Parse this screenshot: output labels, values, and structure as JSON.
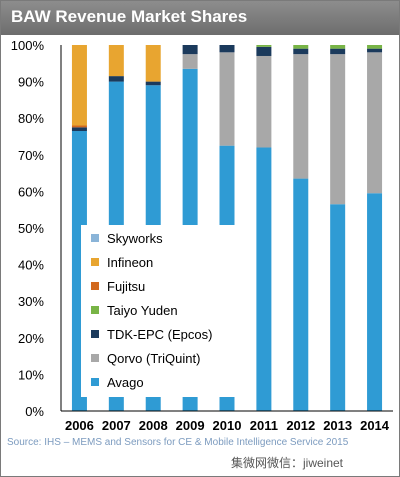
{
  "title": "BAW Revenue Market Shares",
  "source": "Source: IHS – MEMS and Sensors for CE & Mobile Intelligence Service 2015",
  "watermark": "集微网微信：jiweinet",
  "colors": {
    "Avago": "#2f9bd4",
    "Qorvo (TriQuint)": "#a8a8a8",
    "TDK-EPC (Epcos)": "#1b3a5c",
    "Taiyo Yuden": "#78b446",
    "Fujitsu": "#d2691e",
    "Infineon": "#e8a530",
    "Skyworks": "#8ab4d8"
  },
  "chart_data": {
    "type": "bar",
    "stacked": true,
    "title": "BAW Revenue Market Shares",
    "categories": [
      "2006",
      "2007",
      "2008",
      "2009",
      "2010",
      "2011",
      "2012",
      "2013",
      "2014"
    ],
    "ylim": [
      0,
      100
    ],
    "yticks": [
      "0%",
      "10%",
      "20%",
      "30%",
      "40%",
      "50%",
      "60%",
      "70%",
      "80%",
      "90%",
      "100%"
    ],
    "grid": false,
    "legend_position": "bottom-left inside plot",
    "series": [
      {
        "name": "Avago",
        "values": [
          76.5,
          90,
          89,
          93.5,
          72.5,
          72,
          63.5,
          56.5,
          59.5
        ]
      },
      {
        "name": "Qorvo (TriQuint)",
        "values": [
          0,
          0,
          0,
          4,
          25.5,
          25,
          34,
          41,
          38.5
        ]
      },
      {
        "name": "TDK-EPC (Epcos)",
        "values": [
          1,
          1.5,
          1,
          2.5,
          2,
          2.5,
          1.5,
          1.5,
          1
        ]
      },
      {
        "name": "Taiyo Yuden",
        "values": [
          0,
          0,
          0,
          0,
          0,
          0.5,
          1,
          1,
          1
        ]
      },
      {
        "name": "Fujitsu",
        "values": [
          0.5,
          0,
          0,
          0,
          0,
          0,
          0,
          0,
          0
        ]
      },
      {
        "name": "Infineon",
        "values": [
          22,
          8.5,
          10,
          0,
          0,
          0,
          0,
          0,
          0
        ]
      },
      {
        "name": "Skyworks",
        "values": [
          0,
          0,
          0,
          0,
          0,
          0,
          0,
          0,
          0
        ]
      }
    ],
    "legend_order": [
      "Skyworks",
      "Infineon",
      "Fujitsu",
      "Taiyo Yuden",
      "TDK-EPC (Epcos)",
      "Qorvo (TriQuint)",
      "Avago"
    ]
  }
}
